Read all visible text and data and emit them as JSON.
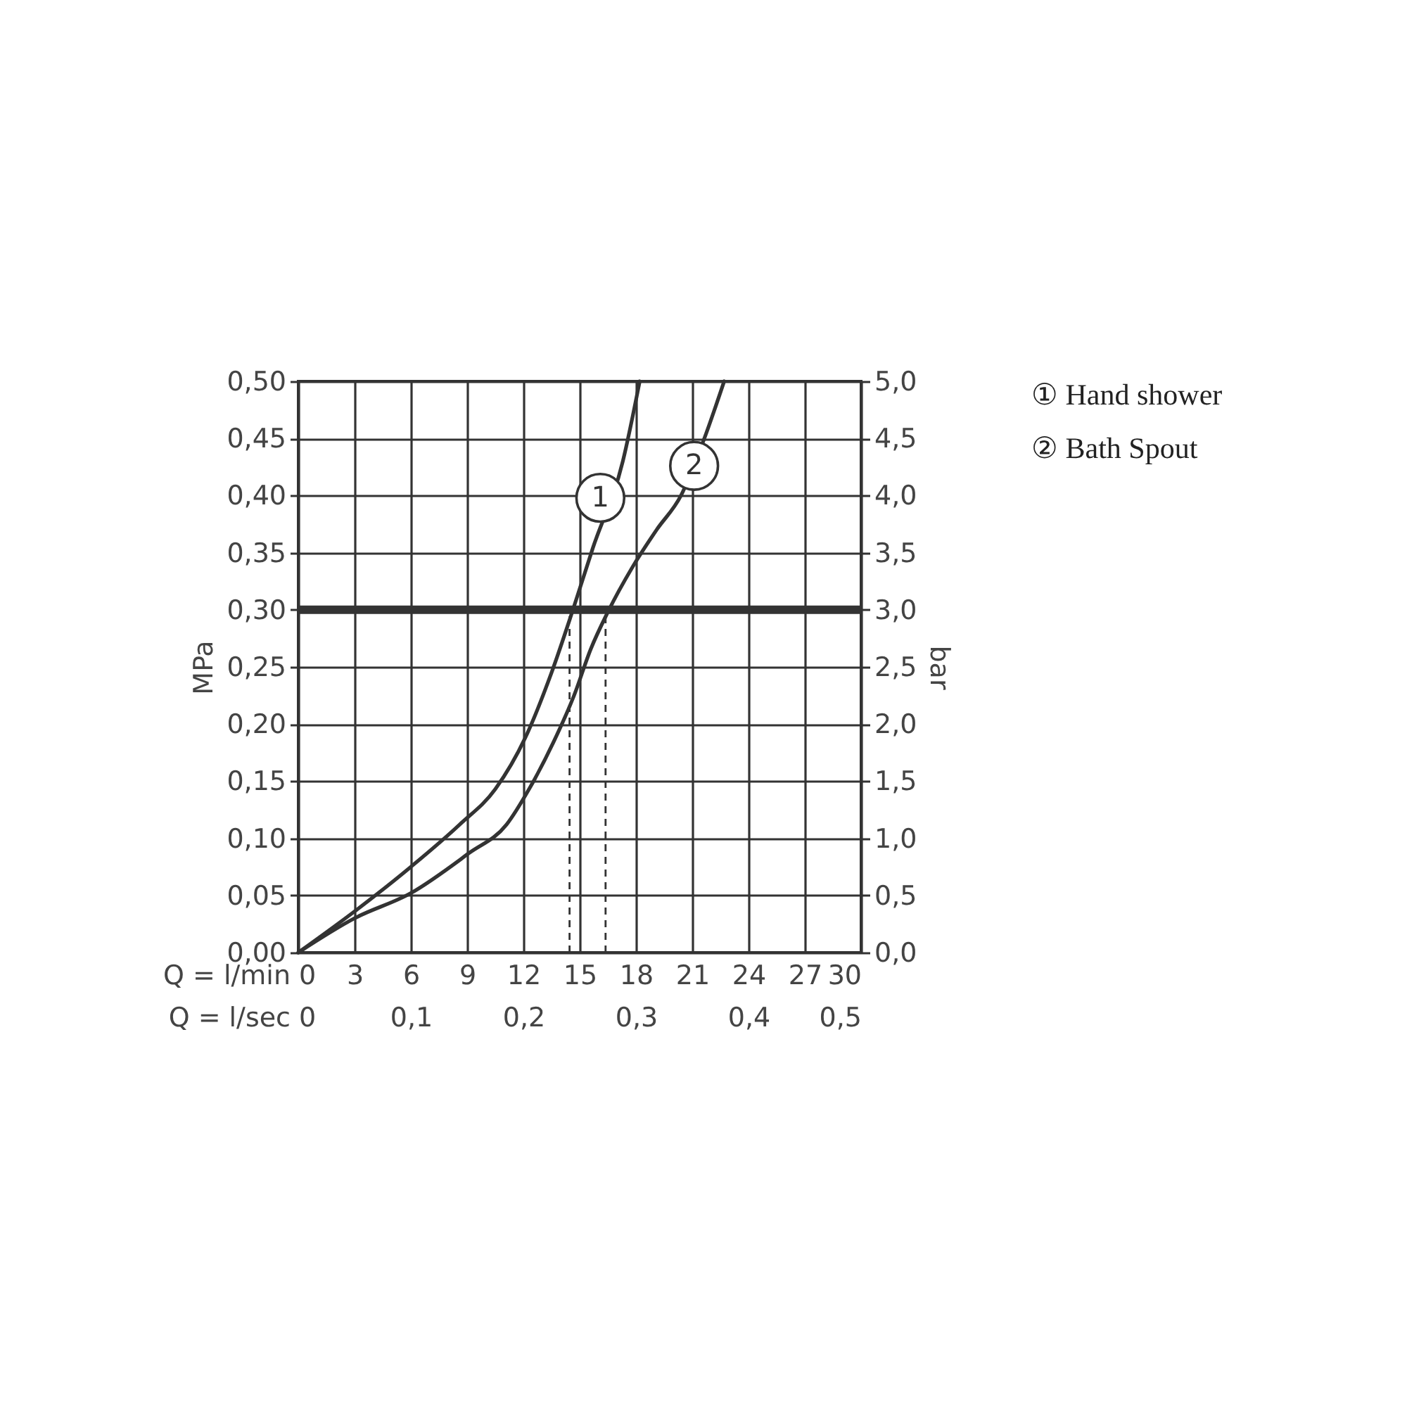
{
  "chart_data": {
    "type": "line",
    "xlabel": "Q = l/min",
    "x2label": "Q = l/sec",
    "ylabel": "MPa",
    "y2label": "bar",
    "xlim": [
      0,
      30
    ],
    "xticks": [
      0,
      3,
      6,
      9,
      12,
      15,
      18,
      21,
      24,
      27,
      30
    ],
    "x2lim": [
      0,
      0.5
    ],
    "x2ticks": [
      {
        "value": 0,
        "label": "0"
      },
      {
        "value": 0.1,
        "label": "0,1"
      },
      {
        "value": 0.2,
        "label": "0,2"
      },
      {
        "value": 0.3,
        "label": "0,3"
      },
      {
        "value": 0.4,
        "label": "0,4"
      },
      {
        "value": 0.5,
        "label": "0,5"
      }
    ],
    "ylim": [
      0,
      0.5
    ],
    "yticks": [
      {
        "value": 0,
        "label": "0,00"
      },
      {
        "value": 0.05,
        "label": "0,05"
      },
      {
        "value": 0.1,
        "label": "0,10"
      },
      {
        "value": 0.15,
        "label": "0,15"
      },
      {
        "value": 0.2,
        "label": "0,20"
      },
      {
        "value": 0.25,
        "label": "0,25"
      },
      {
        "value": 0.3,
        "label": "0,30"
      },
      {
        "value": 0.35,
        "label": "0,35"
      },
      {
        "value": 0.4,
        "label": "0,40"
      },
      {
        "value": 0.45,
        "label": "0,45"
      },
      {
        "value": 0.5,
        "label": "0,50"
      }
    ],
    "y2lim": [
      0,
      5
    ],
    "y2ticks": [
      {
        "value": 0,
        "label": "0,0"
      },
      {
        "value": 0.5,
        "label": "0,5"
      },
      {
        "value": 1,
        "label": "1,0"
      },
      {
        "value": 1.5,
        "label": "1,5"
      },
      {
        "value": 2,
        "label": "2,0"
      },
      {
        "value": 2.5,
        "label": "2,5"
      },
      {
        "value": 3,
        "label": "3,0"
      },
      {
        "value": 3.5,
        "label": "3,5"
      },
      {
        "value": 4,
        "label": "4,0"
      },
      {
        "value": 4.5,
        "label": "4,5"
      },
      {
        "value": 5,
        "label": "5,0"
      }
    ],
    "grid": true,
    "legend": "top right",
    "line_style": "solid",
    "marker": "none",
    "series": [
      {
        "name": "① Hand shower",
        "color": "#333333",
        "x": [
          0,
          3,
          6,
          8.6,
          10.5,
          12.1,
          13.5,
          14.6,
          15.7,
          17.3,
          18.2
        ],
        "values": [
          0,
          0.036,
          0.075,
          0.112,
          0.143,
          0.188,
          0.245,
          0.298,
          0.354,
          0.43,
          0.5
        ]
      },
      {
        "name": "② Bath Spout",
        "color": "#333333",
        "x": [
          0,
          3,
          6,
          9.1,
          11.1,
          12.3,
          13.6,
          14.7,
          15.6,
          16.5,
          17.8,
          19.1,
          20.4,
          21.6,
          22.7
        ],
        "values": [
          0,
          0.03,
          0.052,
          0.087,
          0.112,
          0.143,
          0.184,
          0.225,
          0.266,
          0.298,
          0.337,
          0.37,
          0.4,
          0.448,
          0.5
        ]
      }
    ],
    "ref_lines": [
      {
        "axis": "y2",
        "value": 3.0,
        "color": "#333333",
        "line_style": "solid"
      },
      {
        "axis": "x2",
        "value": 0.241,
        "color": "#333333",
        "line_style": "dashed"
      },
      {
        "axis": "x2",
        "value": 0.273,
        "color": "#333333",
        "line_style": "dashed"
      }
    ],
    "annotations": [
      {
        "text": "1",
        "x": 16.1,
        "y": 0.398
      },
      {
        "text": "2",
        "x": 21.1,
        "y": 0.426
      }
    ]
  }
}
